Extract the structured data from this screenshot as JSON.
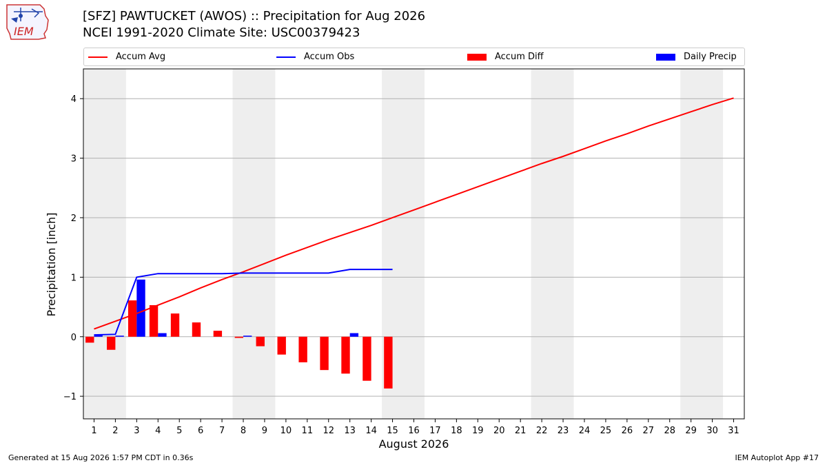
{
  "header": {
    "title_line1": "[SFZ] PAWTUCKET (AWOS) :: Precipitation for Aug 2026",
    "title_line2": "NCEI 1991-2020 Climate Site: USC00379423",
    "logo_text": "IEM"
  },
  "footer": {
    "generated": "Generated at 15 Aug 2026 1:57 PM CDT in 0.36s",
    "app": "IEM Autoplot App #17"
  },
  "colors": {
    "accum_avg": "#ff0000",
    "accum_obs": "#0000ff",
    "accum_diff": "#ff0000",
    "daily_precip": "#0000ff",
    "weekend_shade": "#eeeeee"
  },
  "chart_data": {
    "type": "bar",
    "title": "[SFZ] PAWTUCKET (AWOS) :: Precipitation for Aug 2026",
    "subtitle": "NCEI 1991-2020 Climate Site: USC00379423",
    "xlabel": "August 2026",
    "ylabel": "Precipitation [inch]",
    "xlim": [
      0.5,
      31.5
    ],
    "ylim": [
      -1.38,
      4.5
    ],
    "yticks": [
      -1,
      0,
      1,
      2,
      3,
      4
    ],
    "ytick_labels": [
      "−1",
      "0",
      "1",
      "2",
      "3",
      "4"
    ],
    "days": [
      1,
      2,
      3,
      4,
      5,
      6,
      7,
      8,
      9,
      10,
      11,
      12,
      13,
      14,
      15,
      16,
      17,
      18,
      19,
      20,
      21,
      22,
      23,
      24,
      25,
      26,
      27,
      28,
      29,
      30,
      31
    ],
    "weekend_spans": [
      [
        0.5,
        2.5
      ],
      [
        7.5,
        9.5
      ],
      [
        14.5,
        16.5
      ],
      [
        21.5,
        23.5
      ],
      [
        28.5,
        30.5
      ]
    ],
    "grid": true,
    "legend_position": "top",
    "series": [
      {
        "name": "Accum Avg",
        "kind": "line",
        "x": [
          1,
          2,
          3,
          4,
          5,
          6,
          7,
          8,
          9,
          10,
          11,
          12,
          13,
          14,
          15,
          16,
          17,
          18,
          19,
          20,
          21,
          22,
          23,
          24,
          25,
          26,
          27,
          28,
          29,
          30,
          31
        ],
        "values": [
          0.13,
          0.26,
          0.39,
          0.53,
          0.67,
          0.82,
          0.96,
          1.09,
          1.23,
          1.37,
          1.5,
          1.63,
          1.75,
          1.87,
          2.0,
          2.13,
          2.26,
          2.39,
          2.52,
          2.65,
          2.78,
          2.91,
          3.03,
          3.16,
          3.29,
          3.41,
          3.54,
          3.66,
          3.78,
          3.9,
          4.01
        ]
      },
      {
        "name": "Accum Obs",
        "kind": "line",
        "x": [
          1,
          2,
          3,
          4,
          5,
          6,
          7,
          8,
          9,
          10,
          11,
          12,
          13,
          14,
          15
        ],
        "values": [
          0.03,
          0.04,
          1.0,
          1.06,
          1.06,
          1.06,
          1.06,
          1.07,
          1.07,
          1.07,
          1.07,
          1.07,
          1.13,
          1.13,
          1.13
        ]
      },
      {
        "name": "Accum Diff",
        "kind": "bar",
        "x": [
          1,
          2,
          3,
          4,
          5,
          6,
          7,
          8,
          9,
          10,
          11,
          12,
          13,
          14,
          15
        ],
        "values": [
          -0.1,
          -0.22,
          0.61,
          0.53,
          0.39,
          0.24,
          0.1,
          -0.02,
          -0.16,
          -0.3,
          -0.43,
          -0.56,
          -0.62,
          -0.74,
          -0.87
        ]
      },
      {
        "name": "Daily Precip",
        "kind": "bar",
        "x": [
          1,
          2,
          3,
          4,
          5,
          6,
          7,
          8,
          9,
          10,
          11,
          12,
          13,
          14,
          15
        ],
        "values": [
          0.03,
          0.01,
          0.96,
          0.06,
          0,
          0,
          0,
          0.01,
          0,
          0,
          0,
          0,
          0.06,
          0,
          0
        ]
      }
    ]
  }
}
